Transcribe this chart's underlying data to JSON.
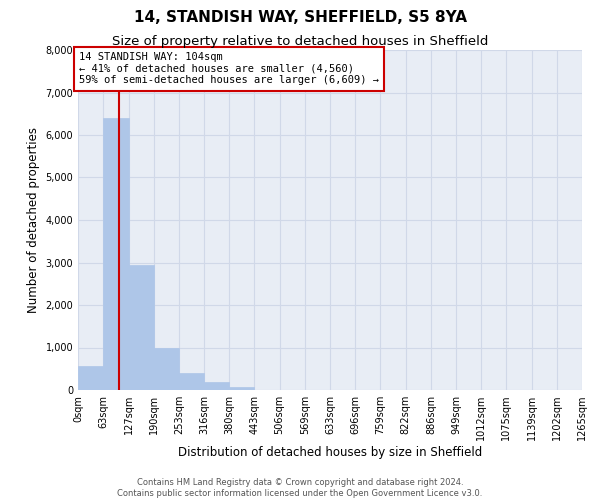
{
  "title": "14, STANDISH WAY, SHEFFIELD, S5 8YA",
  "subtitle": "Size of property relative to detached houses in Sheffield",
  "xlabel": "Distribution of detached houses by size in Sheffield",
  "ylabel": "Number of detached properties",
  "bar_values": [
    560,
    6390,
    2940,
    980,
    390,
    180,
    80,
    0,
    0,
    0,
    0,
    0,
    0,
    0,
    0,
    0,
    0,
    0,
    0,
    0
  ],
  "bin_edges": [
    0,
    63,
    127,
    190,
    253,
    316,
    380,
    443,
    506,
    569,
    633,
    696,
    759,
    822,
    886,
    949,
    1012,
    1075,
    1139,
    1202,
    1265
  ],
  "tick_labels": [
    "0sqm",
    "63sqm",
    "127sqm",
    "190sqm",
    "253sqm",
    "316sqm",
    "380sqm",
    "443sqm",
    "506sqm",
    "569sqm",
    "633sqm",
    "696sqm",
    "759sqm",
    "822sqm",
    "886sqm",
    "949sqm",
    "1012sqm",
    "1075sqm",
    "1139sqm",
    "1202sqm",
    "1265sqm"
  ],
  "bar_color": "#aec6e8",
  "bar_edge_color": "#aec6e8",
  "grid_color": "#d0d8e8",
  "background_color": "#e8edf5",
  "vline_x": 104,
  "vline_color": "#cc0000",
  "annotation_text": "14 STANDISH WAY: 104sqm\n← 41% of detached houses are smaller (4,560)\n59% of semi-detached houses are larger (6,609) →",
  "annotation_box_color": "#ffffff",
  "annotation_box_edge_color": "#cc0000",
  "ylim": [
    0,
    8000
  ],
  "yticks": [
    0,
    1000,
    2000,
    3000,
    4000,
    5000,
    6000,
    7000,
    8000
  ],
  "footer_line1": "Contains HM Land Registry data © Crown copyright and database right 2024.",
  "footer_line2": "Contains public sector information licensed under the Open Government Licence v3.0.",
  "title_fontsize": 11,
  "subtitle_fontsize": 9.5,
  "tick_fontsize": 7,
  "ylabel_fontsize": 8.5,
  "xlabel_fontsize": 8.5,
  "annotation_fontsize": 7.5
}
